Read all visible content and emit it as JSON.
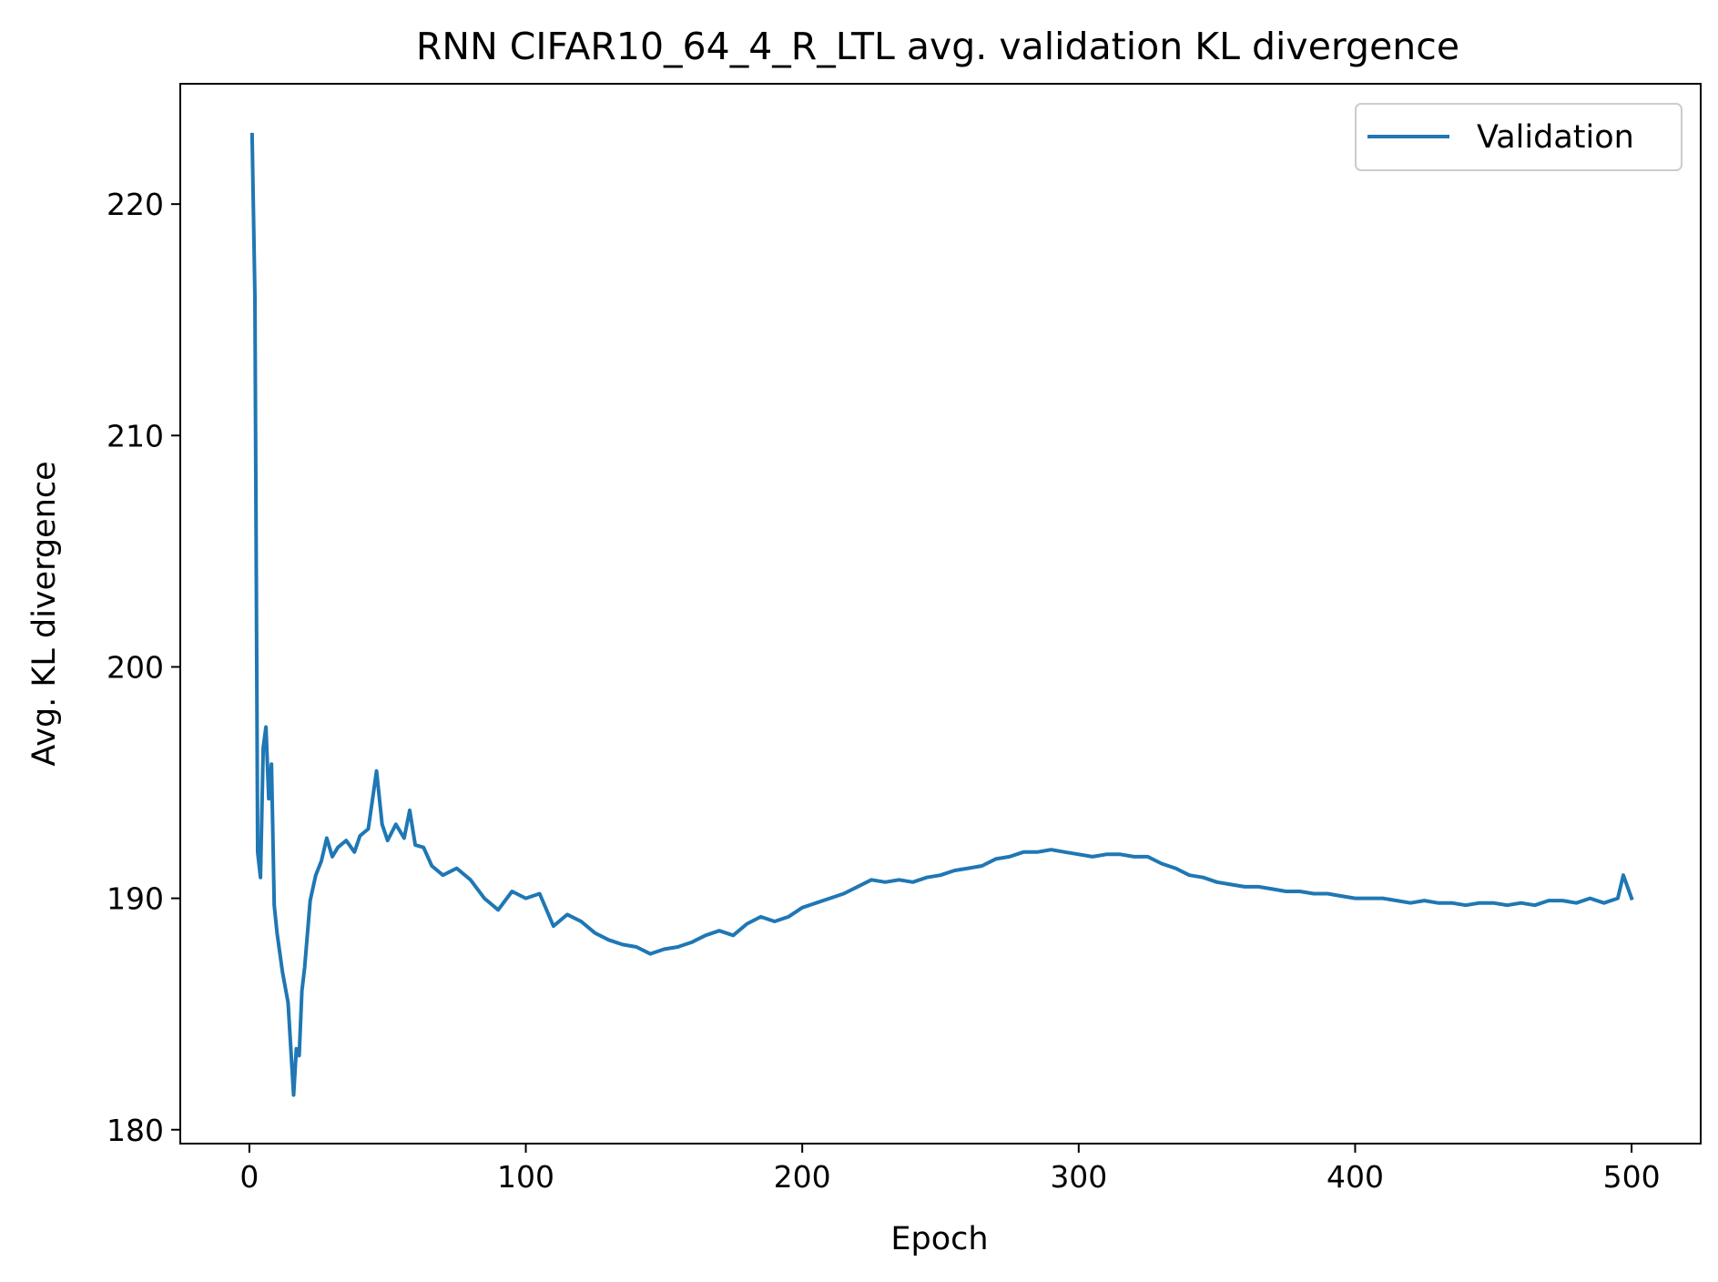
{
  "chart_data": {
    "type": "line",
    "title": "RNN CIFAR10_64_4_R_LTL avg. validation KL divergence",
    "xlabel": "Epoch",
    "ylabel": "Avg. KL divergence",
    "xlim": [
      -25,
      525
    ],
    "ylim": [
      179.4,
      225.2
    ],
    "xticks": [
      0,
      100,
      200,
      300,
      400,
      500
    ],
    "yticks": [
      180,
      190,
      200,
      210,
      220
    ],
    "grid": false,
    "legend_position": "top-right",
    "line_color": "#1f77b4",
    "series": [
      {
        "name": "Validation",
        "x": [
          1,
          2,
          3,
          4,
          5,
          6,
          7,
          8,
          9,
          10,
          12,
          14,
          16,
          17,
          18,
          19,
          20,
          22,
          24,
          26,
          28,
          30,
          32,
          35,
          38,
          40,
          43,
          46,
          48,
          50,
          53,
          56,
          58,
          60,
          63,
          66,
          70,
          75,
          80,
          85,
          90,
          95,
          100,
          105,
          110,
          115,
          120,
          125,
          130,
          135,
          140,
          145,
          150,
          155,
          160,
          165,
          170,
          175,
          180,
          185,
          190,
          195,
          200,
          205,
          210,
          215,
          220,
          225,
          230,
          235,
          240,
          245,
          250,
          255,
          260,
          265,
          270,
          275,
          280,
          285,
          290,
          295,
          300,
          305,
          310,
          315,
          320,
          325,
          330,
          335,
          340,
          345,
          350,
          355,
          360,
          365,
          370,
          375,
          380,
          385,
          390,
          395,
          400,
          405,
          410,
          415,
          420,
          425,
          430,
          435,
          440,
          445,
          450,
          455,
          460,
          465,
          470,
          475,
          480,
          485,
          490,
          495,
          497,
          500
        ],
        "values": [
          223.0,
          216.0,
          192.0,
          190.9,
          196.5,
          197.4,
          194.3,
          195.8,
          189.7,
          188.5,
          186.8,
          185.5,
          181.5,
          183.5,
          183.2,
          186.0,
          187.0,
          189.9,
          191.0,
          191.6,
          192.6,
          191.8,
          192.2,
          192.5,
          192.0,
          192.7,
          193.0,
          195.5,
          193.2,
          192.5,
          193.2,
          192.6,
          193.8,
          192.3,
          192.2,
          191.4,
          191.0,
          191.3,
          190.8,
          190.0,
          189.5,
          190.3,
          190.0,
          190.2,
          188.8,
          189.3,
          189.0,
          188.5,
          188.2,
          188.0,
          187.9,
          187.6,
          187.8,
          187.9,
          188.1,
          188.4,
          188.6,
          188.4,
          188.9,
          189.2,
          189.0,
          189.2,
          189.6,
          189.8,
          190.0,
          190.2,
          190.5,
          190.8,
          190.7,
          190.8,
          190.7,
          190.9,
          191.0,
          191.2,
          191.3,
          191.4,
          191.7,
          191.8,
          192.0,
          192.0,
          192.1,
          192.0,
          191.9,
          191.8,
          191.9,
          191.9,
          191.8,
          191.8,
          191.5,
          191.3,
          191.0,
          190.9,
          190.7,
          190.6,
          190.5,
          190.5,
          190.4,
          190.3,
          190.3,
          190.2,
          190.2,
          190.1,
          190.0,
          190.0,
          190.0,
          189.9,
          189.8,
          189.9,
          189.8,
          189.8,
          189.7,
          189.8,
          189.8,
          189.7,
          189.8,
          189.7,
          189.9,
          189.9,
          189.8,
          190.0,
          189.8,
          190.0,
          191.0,
          190.0
        ]
      }
    ]
  }
}
